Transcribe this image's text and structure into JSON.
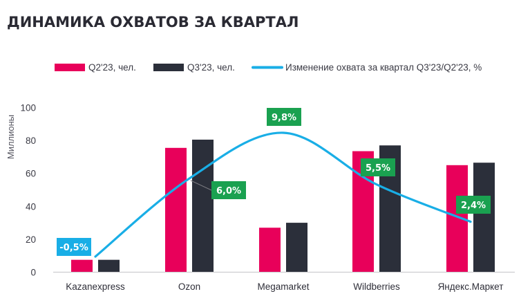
{
  "chart_data": {
    "type": "bar",
    "title": "ДИНАМИКА ОХВАТОВ ЗА КВАРТАЛ",
    "ylabel": "Миллионы",
    "ylim": [
      0,
      100
    ],
    "yticks": [
      "0",
      "20",
      "40",
      "60",
      "80",
      "100"
    ],
    "grid": false,
    "legend_position": "top",
    "categories": [
      "Kazanexpress",
      "Ozon",
      "Megamarket",
      "Wildberries",
      "Яндекс.Маркет"
    ],
    "series": [
      {
        "name": "Q2'23, чел.",
        "type": "bar",
        "color": "#e8005a",
        "values": [
          7.5,
          75.5,
          27,
          73.5,
          65
        ]
      },
      {
        "name": "Q3'23, чел.",
        "type": "bar",
        "color": "#2b2f3a",
        "values": [
          7.5,
          80.5,
          30,
          77,
          66.5
        ]
      },
      {
        "name": "Изменение охвата за квартал Q3'23/Q2'23, %",
        "type": "line",
        "color": "#19aee6",
        "values": [
          -0.5,
          6.0,
          9.8,
          5.5,
          2.4
        ],
        "labels": [
          "-0,5%",
          "6,0%",
          "9,8%",
          "5,5%",
          "2,4%"
        ],
        "label_colors": [
          "#19aee6",
          "#1aa150",
          "#1aa150",
          "#1aa150",
          "#1aa150"
        ]
      }
    ]
  }
}
